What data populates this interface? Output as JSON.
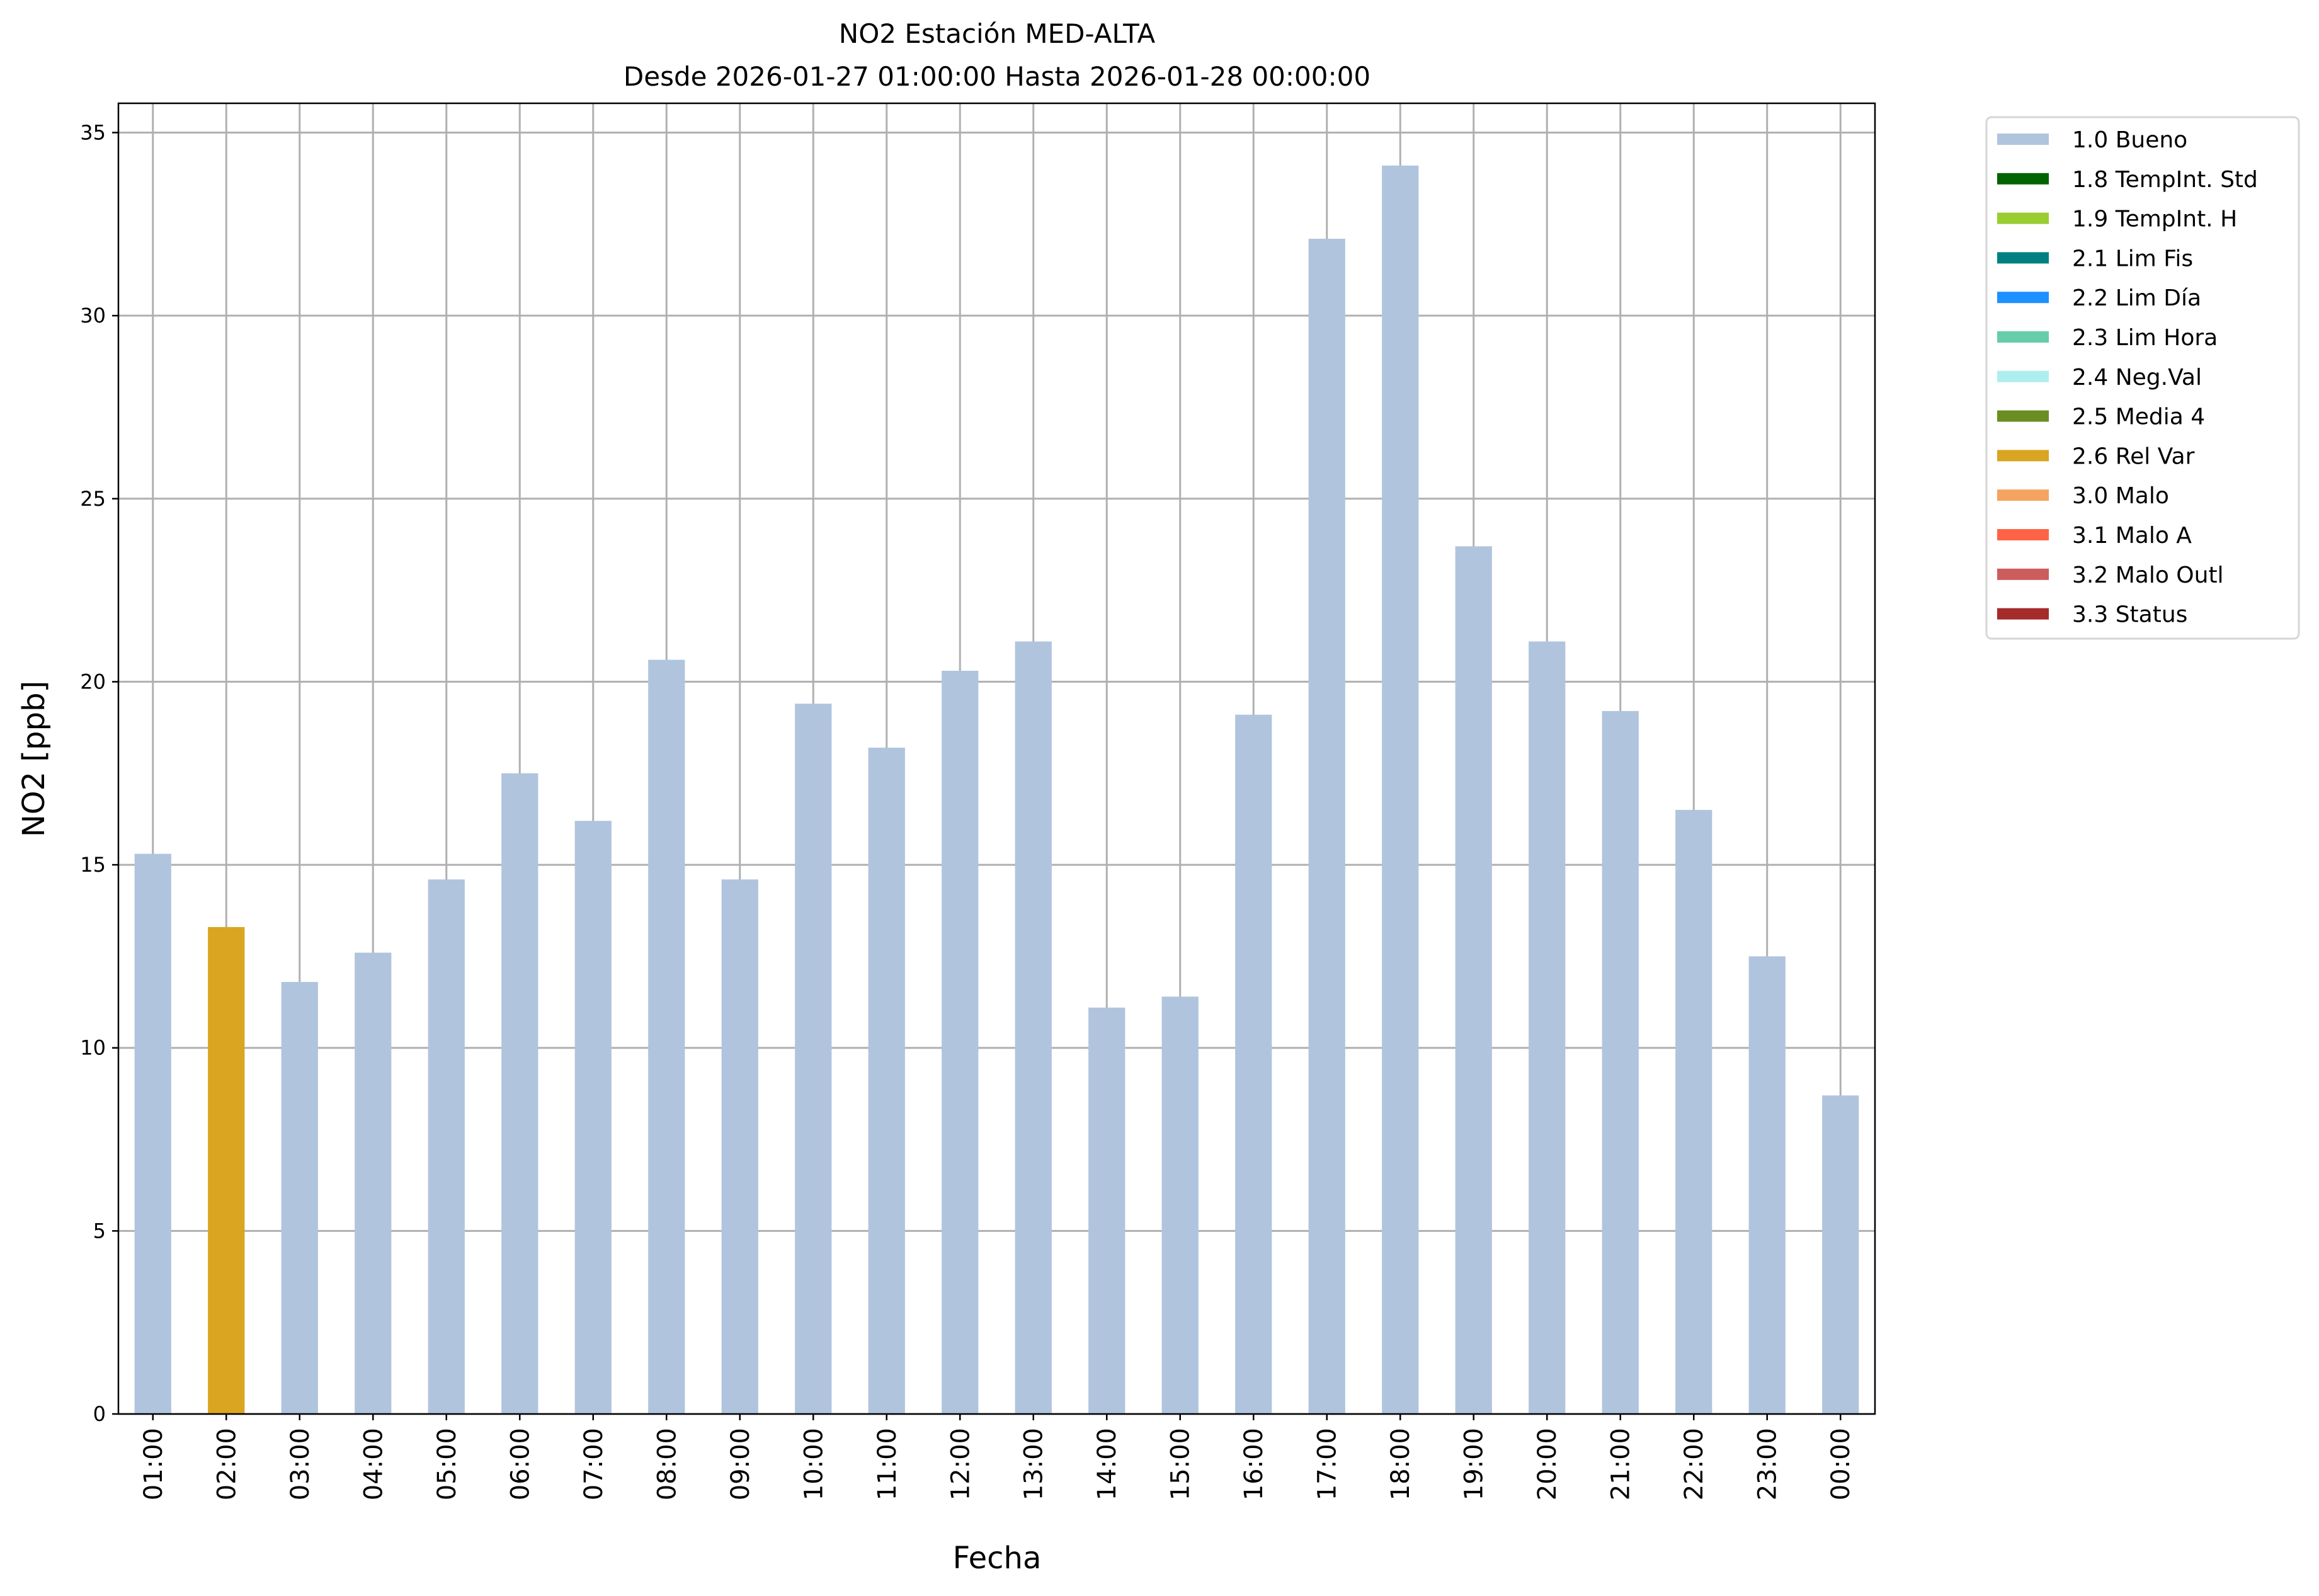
{
  "chart_data": {
    "type": "bar",
    "title": "NO2 Estación MED-ALTA",
    "subtitle": "Desde 2026-01-27 01:00:00 Hasta 2026-01-28 00:00:00",
    "xlabel": "Fecha",
    "ylabel": "NO2 [ppb]",
    "ylim": [
      0,
      35.8
    ],
    "yticks": [
      0,
      5,
      10,
      15,
      20,
      25,
      30,
      35
    ],
    "grid": true,
    "legend_placement": "outside-top-right",
    "categories": [
      "01:00",
      "02:00",
      "03:00",
      "04:00",
      "05:00",
      "06:00",
      "07:00",
      "08:00",
      "09:00",
      "10:00",
      "11:00",
      "12:00",
      "13:00",
      "14:00",
      "15:00",
      "16:00",
      "17:00",
      "18:00",
      "19:00",
      "20:00",
      "21:00",
      "22:00",
      "23:00",
      "00:00"
    ],
    "values": [
      15.3,
      13.3,
      11.8,
      12.6,
      14.6,
      17.5,
      16.2,
      20.6,
      14.6,
      19.4,
      18.2,
      20.3,
      21.1,
      11.1,
      11.4,
      19.1,
      32.1,
      34.1,
      23.7,
      21.1,
      19.2,
      16.5,
      12.5,
      8.7
    ],
    "flags": [
      "1.0 Bueno",
      "2.6 Rel Var",
      "1.0 Bueno",
      "1.0 Bueno",
      "1.0 Bueno",
      "1.0 Bueno",
      "1.0 Bueno",
      "1.0 Bueno",
      "1.0 Bueno",
      "1.0 Bueno",
      "1.0 Bueno",
      "1.0 Bueno",
      "1.0 Bueno",
      "1.0 Bueno",
      "1.0 Bueno",
      "1.0 Bueno",
      "1.0 Bueno",
      "1.0 Bueno",
      "1.0 Bueno",
      "1.0 Bueno",
      "1.0 Bueno",
      "1.0 Bueno",
      "1.0 Bueno",
      "1.0 Bueno"
    ],
    "legend": [
      {
        "label": "1.0 Bueno",
        "color": "#b0c4de"
      },
      {
        "label": "1.8 TempInt. Std",
        "color": "#006400"
      },
      {
        "label": "1.9 TempInt. H",
        "color": "#9acd32"
      },
      {
        "label": "2.1 Lim Fis",
        "color": "#008080"
      },
      {
        "label": "2.2 Lim Día",
        "color": "#1e90ff"
      },
      {
        "label": "2.3 Lim Hora",
        "color": "#66cdaa"
      },
      {
        "label": "2.4 Neg.Val",
        "color": "#afeeee"
      },
      {
        "label": "2.5 Media 4",
        "color": "#6b8e23"
      },
      {
        "label": "2.6 Rel Var",
        "color": "#daa520"
      },
      {
        "label": "3.0 Malo",
        "color": "#f4a460"
      },
      {
        "label": "3.1 Malo A",
        "color": "#ff6347"
      },
      {
        "label": "3.2 Malo Outl",
        "color": "#cd5c5c"
      },
      {
        "label": "3.3 Status",
        "color": "#a52a2a"
      }
    ],
    "grid_color": "#b0b0b0"
  }
}
